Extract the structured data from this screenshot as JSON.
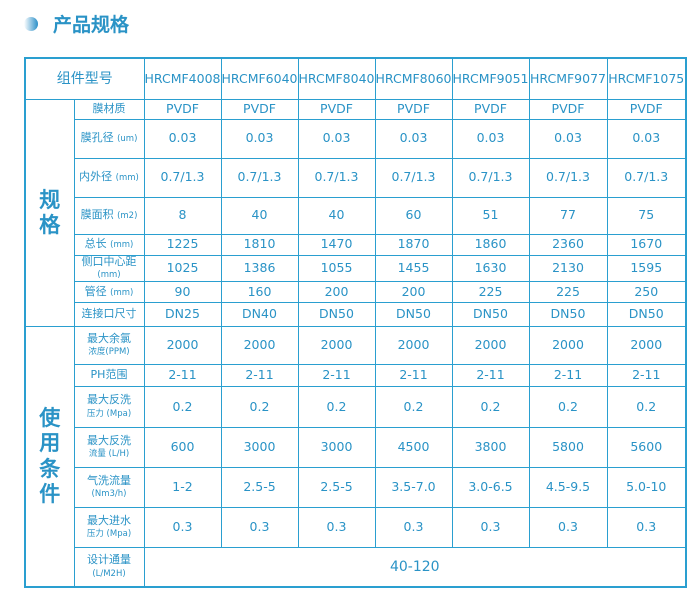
{
  "title": "产品规格",
  "header_label": "组件型号",
  "models": [
    "HRCMF4008",
    "HRCMF6040",
    "HRCMF8040",
    "HRCMF8060",
    "HRCMF9051",
    "HRCMF9077",
    "HRCMF1075"
  ],
  "groups": {
    "spec": "规格",
    "usage": "使用条件"
  },
  "rows": [
    {
      "label": "膜材质",
      "unit": "",
      "values": [
        "PVDF",
        "PVDF",
        "PVDF",
        "PVDF",
        "PVDF",
        "PVDF",
        "PVDF"
      ]
    },
    {
      "label": "膜孔径",
      "unit": "(um)",
      "values": [
        "0.03",
        "0.03",
        "0.03",
        "0.03",
        "0.03",
        "0.03",
        "0.03"
      ]
    },
    {
      "label": "内外径",
      "unit": "(mm)",
      "values": [
        "0.7/1.3",
        "0.7/1.3",
        "0.7/1.3",
        "0.7/1.3",
        "0.7/1.3",
        "0.7/1.3",
        "0.7/1.3"
      ]
    },
    {
      "label": "膜面积",
      "unit": "(m2)",
      "values": [
        "8",
        "40",
        "40",
        "60",
        "51",
        "77",
        "75"
      ]
    },
    {
      "label": "总长",
      "unit": "(mm)",
      "values": [
        "1225",
        "1810",
        "1470",
        "1870",
        "1860",
        "2360",
        "1670"
      ]
    },
    {
      "label": "侧口中心距",
      "unit": "(mm)",
      "values": [
        "1025",
        "1386",
        "1055",
        "1455",
        "1630",
        "2130",
        "1595"
      ]
    },
    {
      "label": "管径",
      "unit": "(mm)",
      "values": [
        "90",
        "160",
        "200",
        "200",
        "225",
        "225",
        "250"
      ]
    },
    {
      "label": "连接口尺寸",
      "unit": "",
      "values": [
        "DN25",
        "DN40",
        "DN50",
        "DN50",
        "DN50",
        "DN50",
        "DN50"
      ]
    },
    {
      "label": "最大余氯",
      "unit": "浓度(PPM)",
      "values": [
        "2000",
        "2000",
        "2000",
        "2000",
        "2000",
        "2000",
        "2000"
      ]
    },
    {
      "label": "PH范围",
      "unit": "",
      "values": [
        "2-11",
        "2-11",
        "2-11",
        "2-11",
        "2-11",
        "2-11",
        "2-11"
      ]
    },
    {
      "label": "最大反洗",
      "unit": "压力 (Mpa)",
      "values": [
        "0.2",
        "0.2",
        "0.2",
        "0.2",
        "0.2",
        "0.2",
        "0.2"
      ]
    },
    {
      "label": "最大反洗",
      "unit": "流量 (L/H)",
      "values": [
        "600",
        "3000",
        "3000",
        "4500",
        "3800",
        "5800",
        "5600"
      ]
    },
    {
      "label": "气洗流量",
      "unit": "(Nm3/h)",
      "values": [
        "1-2",
        "2.5-5",
        "2.5-5",
        "3.5-7.0",
        "3.0-6.5",
        "4.5-9.5",
        "5.0-10"
      ]
    },
    {
      "label": "最大进水",
      "unit": "压力 (Mpa)",
      "values": [
        "0.3",
        "0.3",
        "0.3",
        "0.3",
        "0.3",
        "0.3",
        "0.3"
      ]
    }
  ],
  "design_flux": {
    "label": "设计通量",
    "unit": "(L/M2H)",
    "value": "40-120"
  }
}
